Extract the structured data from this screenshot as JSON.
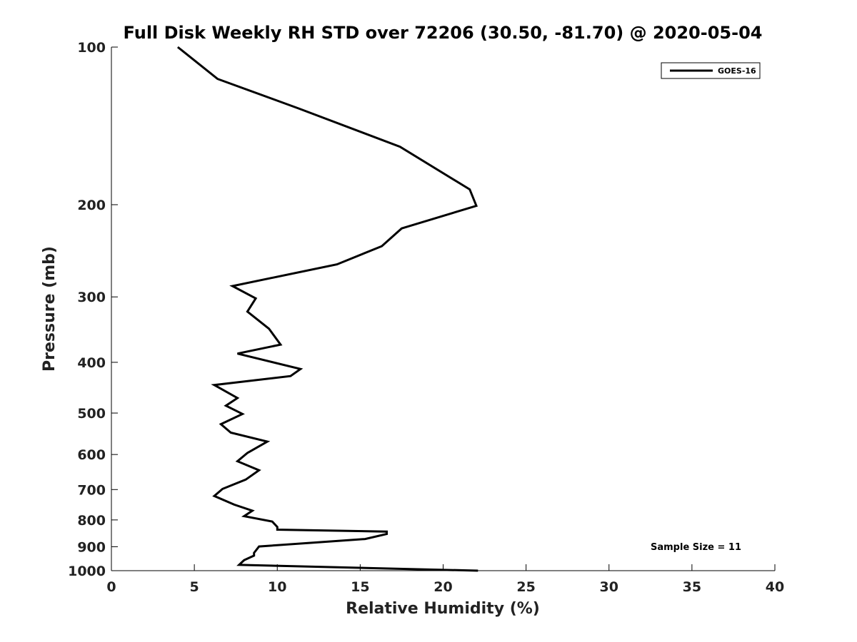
{
  "chart_data": {
    "type": "line",
    "title": "Full Disk Weekly RH STD over 72206 (30.50, -81.70) @ 2020-05-04",
    "xlabel": "Relative Humidity (%)",
    "ylabel": "Pressure (mb)",
    "xlim": [
      0,
      40
    ],
    "ylim": [
      100,
      1000
    ],
    "y_scale": "log",
    "y_reversed": true,
    "x_ticks": [
      0,
      5,
      10,
      15,
      20,
      25,
      30,
      35,
      40
    ],
    "y_ticks": [
      100,
      200,
      300,
      400,
      500,
      600,
      700,
      800,
      900,
      1000
    ],
    "grid": false,
    "legend_position": "top-right",
    "series": [
      {
        "name": "GOES-16",
        "color": "#000000",
        "x": [
          4.0,
          6.4,
          11.3,
          17.4,
          21.6,
          22.0,
          17.5,
          16.3,
          13.6,
          7.3,
          8.7,
          8.2,
          9.5,
          10.2,
          7.6,
          11.4,
          10.8,
          6.2,
          7.6,
          6.9,
          7.9,
          6.6,
          7.2,
          9.4,
          8.2,
          7.6,
          8.9,
          8.1,
          6.7,
          6.2,
          7.4,
          8.5,
          8.0,
          9.7,
          10.0,
          10.0,
          16.6,
          16.6,
          15.3,
          8.9,
          8.6,
          8.6,
          8.0,
          7.7,
          22.1
        ],
        "y": [
          100,
          115,
          131,
          155,
          187,
          201,
          222,
          240,
          260,
          286,
          302,
          320,
          345,
          370,
          385,
          412,
          425,
          442,
          468,
          484,
          502,
          525,
          545,
          567,
          596,
          618,
          643,
          670,
          698,
          720,
          748,
          768,
          787,
          806,
          825,
          835,
          842,
          851,
          870,
          899,
          925,
          936,
          955,
          975,
          1000
        ]
      }
    ],
    "annotations": [
      {
        "text": "Sample Size = 11"
      }
    ]
  }
}
